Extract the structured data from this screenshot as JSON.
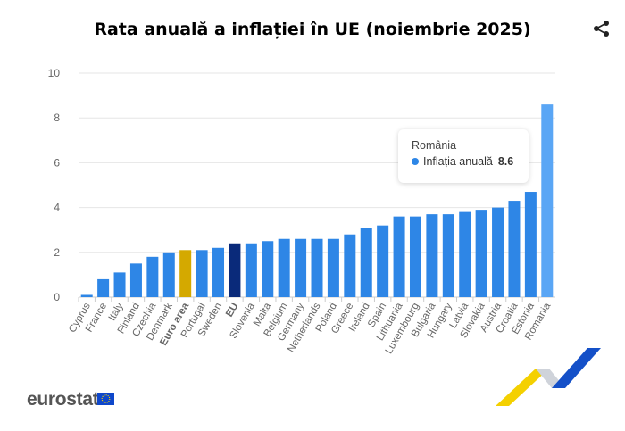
{
  "title": "Rata anuală a inflației în UE (noiembrie 2025)",
  "logo": "eurostat",
  "tooltip": {
    "title": "România",
    "series": "Inflația anuală",
    "value": "8.6"
  },
  "colors": {
    "bar": "#2e86e6",
    "highlight_bar": "#5aa6f5",
    "euro_area": "#d4a900",
    "eu": "#0a2a7a"
  },
  "chart_data": {
    "type": "bar",
    "title": "Rata anuală a inflației în UE (noiembrie 2025)",
    "xlabel": "",
    "ylabel": "",
    "ylim": [
      0,
      10
    ],
    "yticks": [
      0,
      2,
      4,
      6,
      8,
      10
    ],
    "grid": true,
    "categories": [
      "Cyprus",
      "France",
      "Italy",
      "Finland",
      "Czechia",
      "Denmark",
      "Euro area",
      "Portugal",
      "Sweden",
      "EU",
      "Slovenia",
      "Malta",
      "Belgium",
      "Germany",
      "Netherlands",
      "Poland",
      "Greece",
      "Ireland",
      "Spain",
      "Lithuania",
      "Luxembourg",
      "Bulgaria",
      "Hungary",
      "Latvia",
      "Slovakia",
      "Austria",
      "Croatia",
      "Estonia",
      "Romania"
    ],
    "values": [
      0.1,
      0.8,
      1.1,
      1.5,
      1.8,
      2.0,
      2.1,
      2.1,
      2.2,
      2.4,
      2.4,
      2.5,
      2.6,
      2.6,
      2.6,
      2.6,
      2.8,
      3.1,
      3.2,
      3.6,
      3.6,
      3.7,
      3.7,
      3.8,
      3.9,
      4.0,
      4.3,
      4.7,
      8.6
    ],
    "bold_categories": [
      "Euro area",
      "EU"
    ],
    "highlighted": "Romania"
  }
}
